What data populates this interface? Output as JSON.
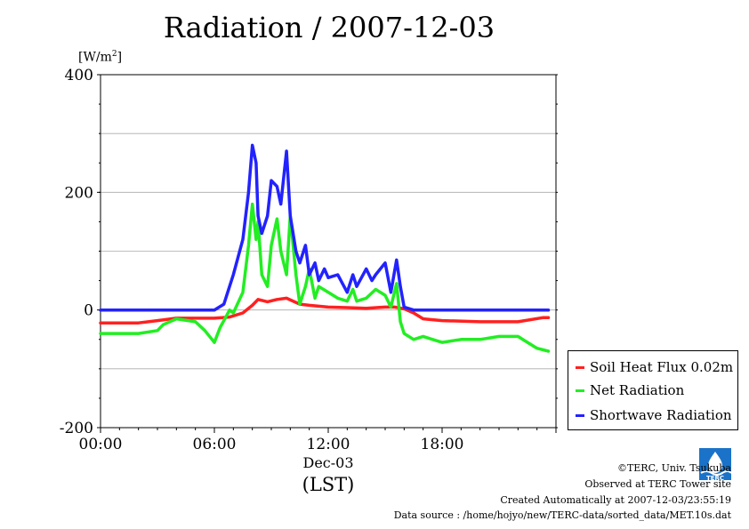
{
  "chart_data": {
    "type": "line",
    "title": "Radiation / 2007-12-03",
    "ylabel_prefix": "[W/m",
    "ylabel_sup": "2",
    "ylabel_suffix": "]",
    "ylim": [
      -200,
      400
    ],
    "xlim_hours": [
      0,
      24
    ],
    "y_ticks": [
      {
        "value": 400,
        "label": "400"
      },
      {
        "value": 200,
        "label": "200"
      },
      {
        "value": 0,
        "label": "0"
      },
      {
        "value": -200,
        "label": "-200"
      }
    ],
    "x_ticks": [
      {
        "value": 0,
        "label": "00:00"
      },
      {
        "value": 6,
        "label": "06:00"
      },
      {
        "value": 12,
        "label": "12:00"
      },
      {
        "value": 18,
        "label": "18:00"
      }
    ],
    "x_date_label": "Dec-03",
    "x_axis_label": "(LST)",
    "grid": true,
    "legend_position": "bottom-right",
    "series": [
      {
        "name": "Soil Heat Flux 0.02m",
        "color": "#ff2020",
        "x": [
          0,
          2,
          3,
          4,
          6,
          6.8,
          7.5,
          8,
          8.3,
          8.8,
          9.3,
          9.8,
          10.5,
          11,
          12,
          13,
          14,
          15,
          15.5,
          16,
          16.5,
          17,
          18,
          20,
          22,
          23.3,
          23.6
        ],
        "y": [
          -22,
          -22,
          -18,
          -14,
          -14,
          -12,
          -5,
          8,
          18,
          14,
          18,
          20,
          10,
          8,
          5,
          4,
          3,
          5,
          5,
          2,
          -5,
          -15,
          -18,
          -20,
          -20,
          -13,
          -13
        ]
      },
      {
        "name": "Net Radiation",
        "color": "#22ee22",
        "x": [
          0,
          2,
          3,
          3.3,
          4,
          5,
          5.5,
          6,
          6.3,
          6.8,
          7,
          7.5,
          7.8,
          8,
          8.2,
          8.3,
          8.5,
          8.8,
          9,
          9.3,
          9.5,
          9.8,
          10,
          10.3,
          10.5,
          10.8,
          11,
          11.3,
          11.5,
          12,
          12.5,
          13,
          13.3,
          13.5,
          14,
          14.5,
          15,
          15.3,
          15.6,
          15.8,
          16,
          16.5,
          17,
          17.5,
          18,
          19,
          20,
          21,
          22,
          22.5,
          23,
          23.6
        ],
        "y": [
          -40,
          -40,
          -35,
          -25,
          -15,
          -20,
          -35,
          -55,
          -30,
          0,
          -5,
          30,
          110,
          180,
          120,
          150,
          60,
          40,
          110,
          155,
          100,
          60,
          160,
          60,
          10,
          40,
          70,
          20,
          40,
          30,
          20,
          15,
          35,
          15,
          20,
          35,
          25,
          5,
          45,
          -20,
          -40,
          -50,
          -45,
          -50,
          -55,
          -50,
          -50,
          -45,
          -45,
          -55,
          -65,
          -70
        ]
      },
      {
        "name": "Shortwave Radiation",
        "color": "#2222ff",
        "x": [
          0,
          6,
          6.5,
          7,
          7.5,
          7.8,
          8,
          8.2,
          8.3,
          8.5,
          8.8,
          9,
          9.3,
          9.5,
          9.8,
          10,
          10.3,
          10.5,
          10.8,
          11,
          11.3,
          11.5,
          11.8,
          12,
          12.5,
          13,
          13.3,
          13.5,
          14,
          14.3,
          14.5,
          15,
          15.3,
          15.6,
          15.8,
          16,
          16.5,
          17,
          18,
          20,
          22,
          23.6
        ],
        "y": [
          0,
          0,
          10,
          60,
          120,
          200,
          280,
          250,
          160,
          130,
          160,
          220,
          210,
          180,
          270,
          160,
          100,
          80,
          110,
          60,
          80,
          50,
          70,
          55,
          60,
          30,
          60,
          40,
          70,
          50,
          60,
          80,
          30,
          85,
          40,
          5,
          0,
          0,
          0,
          0,
          0,
          0
        ]
      }
    ]
  },
  "credits": {
    "copyright": "©TERC, Univ. Tsukuba",
    "observed": "Observed at TERC Tower site",
    "created": "Created Automatically at 2007-12-03/23:55:19",
    "source": "Data source : /home/hojyo/new/TERC-data/sorted_data/MET.10s.dat"
  },
  "logo": {
    "text": "TERC",
    "color": "#1a73c8"
  }
}
